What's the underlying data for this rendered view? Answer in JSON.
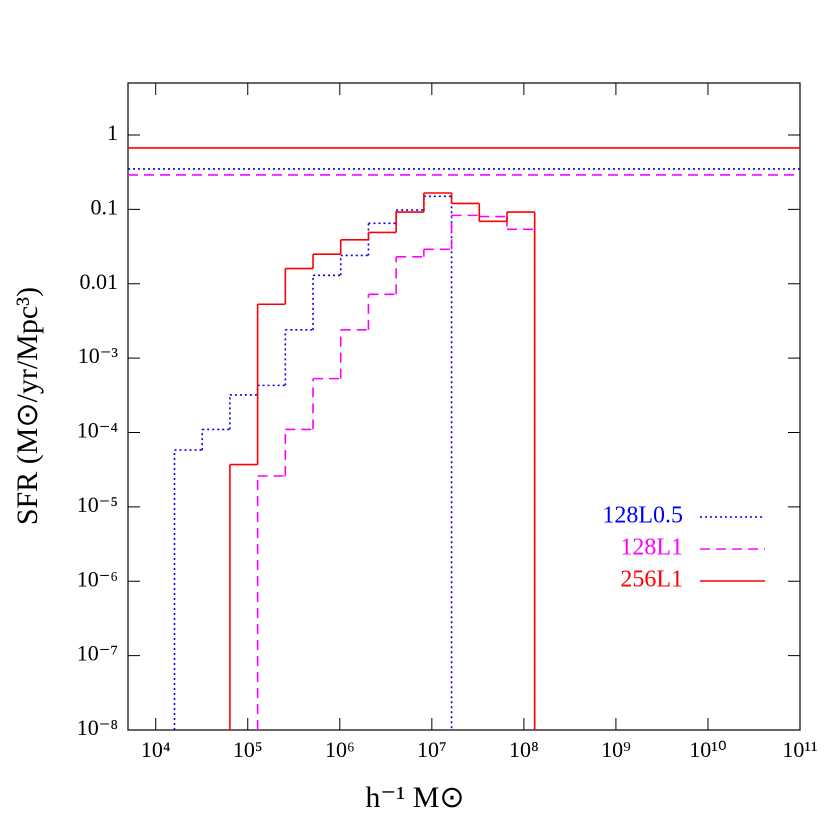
{
  "chart_data": {
    "type": "step-histogram",
    "xlabel": "h⁻¹ M⊙",
    "ylabel": "SFR (M⊙/yr/Mpc³)",
    "xscale": "log",
    "yscale": "log",
    "xlim": [
      5000,
      100000000000
    ],
    "ylim": [
      1e-08,
      5
    ],
    "xticks": [
      {
        "value": 10000,
        "label": "10⁴"
      },
      {
        "value": 100000,
        "label": "10⁵"
      },
      {
        "value": 1000000,
        "label": "10⁶"
      },
      {
        "value": 10000000,
        "label": "10⁷"
      },
      {
        "value": 100000000,
        "label": "10⁸"
      },
      {
        "value": 1000000000,
        "label": "10⁹"
      },
      {
        "value": 10000000000,
        "label": "10¹⁰"
      },
      {
        "value": 100000000000,
        "label": "10¹¹"
      }
    ],
    "yticks": [
      {
        "value": 1e-08,
        "label": "10⁻⁸"
      },
      {
        "value": 1e-07,
        "label": "10⁻⁷"
      },
      {
        "value": 1e-06,
        "label": "10⁻⁶"
      },
      {
        "value": 1e-05,
        "label": "10⁻⁵"
      },
      {
        "value": 0.0001,
        "label": "10⁻⁴"
      },
      {
        "value": 0.001,
        "label": "10⁻³"
      },
      0.01,
      0.1,
      1
    ],
    "bins": [
      16000,
      32000,
      64000,
      128000,
      256000,
      512000,
      1024000,
      2048000,
      4096000,
      8192000,
      16384000,
      32768000,
      65536000,
      131072000
    ],
    "legend": "right",
    "series": [
      {
        "name": "128L0.5",
        "color": "#0000ff",
        "style": "dotted",
        "hline": 0.35,
        "values": [
          5.8e-05,
          0.00011,
          0.00032,
          0.00043,
          0.0024,
          0.013,
          0.024,
          0.065,
          0.098,
          0.15,
          null,
          null,
          null
        ]
      },
      {
        "name": "128L1",
        "color": "#ff00ff",
        "style": "dashed",
        "hline": 0.29,
        "values": [
          null,
          null,
          null,
          2.6e-05,
          0.00011,
          0.00053,
          0.0024,
          0.0072,
          0.023,
          0.029,
          0.083,
          0.08,
          0.054
        ]
      },
      {
        "name": "256L1",
        "color": "#ff0000",
        "style": "solid",
        "hline": 0.67,
        "values": [
          null,
          null,
          3.7e-05,
          0.0053,
          0.016,
          0.025,
          0.039,
          0.049,
          0.092,
          0.166,
          0.12,
          0.069,
          0.092
        ]
      }
    ]
  }
}
